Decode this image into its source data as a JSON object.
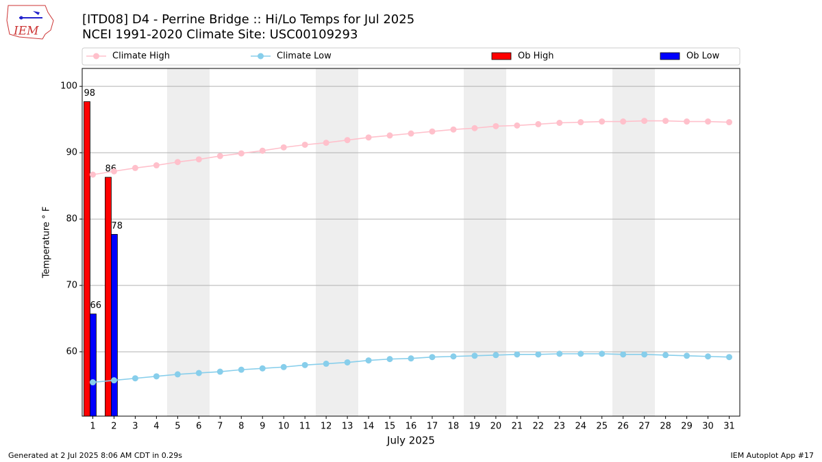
{
  "chart_data": {
    "type": "bar",
    "title": "[ITD08] D4 - Perrine Bridge  :: Hi/Lo Temps for Jul 2025",
    "subtitle": "NCEI 1991-2020 Climate Site: USC00109293",
    "x_label": "July 2025",
    "y_label": "Temperature ° F",
    "footer_left": "Generated at 2 Jul 2025 8:06 AM CDT in 0.29s",
    "footer_right": "IEM Autoplot App #17",
    "logo_text": "IEM",
    "categories": [
      "1",
      "2",
      "3",
      "4",
      "5",
      "6",
      "7",
      "8",
      "9",
      "10",
      "11",
      "12",
      "13",
      "14",
      "15",
      "16",
      "17",
      "18",
      "19",
      "20",
      "21",
      "22",
      "23",
      "24",
      "25",
      "26",
      "27",
      "28",
      "29",
      "30",
      "31"
    ],
    "ylim": [
      50.3,
      102.7
    ],
    "yticks": [
      60,
      70,
      80,
      90,
      100
    ],
    "grid": true,
    "legend": "top",
    "series": [
      {
        "name": "Climate High",
        "type": "line",
        "color": "#ffc0cb",
        "values": [
          86.7,
          87.2,
          87.7,
          88.1,
          88.6,
          89.0,
          89.5,
          89.9,
          90.3,
          90.8,
          91.2,
          91.5,
          91.9,
          92.3,
          92.6,
          92.9,
          93.2,
          93.5,
          93.7,
          94.0,
          94.1,
          94.3,
          94.5,
          94.6,
          94.7,
          94.7,
          94.8,
          94.8,
          94.7,
          94.7,
          94.6
        ]
      },
      {
        "name": "Climate Low",
        "type": "line",
        "color": "#87ceeb",
        "values": [
          55.4,
          55.7,
          56.0,
          56.3,
          56.6,
          56.8,
          57.0,
          57.3,
          57.5,
          57.7,
          58.0,
          58.2,
          58.4,
          58.7,
          58.9,
          59.0,
          59.2,
          59.3,
          59.4,
          59.5,
          59.6,
          59.6,
          59.7,
          59.7,
          59.7,
          59.6,
          59.6,
          59.5,
          59.4,
          59.3,
          59.2
        ]
      },
      {
        "name": "Ob High",
        "type": "bar",
        "color": "#ff0000",
        "values": [
          97.7,
          86.3,
          null,
          null,
          null,
          null,
          null,
          null,
          null,
          null,
          null,
          null,
          null,
          null,
          null,
          null,
          null,
          null,
          null,
          null,
          null,
          null,
          null,
          null,
          null,
          null,
          null,
          null,
          null,
          null,
          null
        ],
        "value_labels": [
          "98",
          "86",
          null,
          null,
          null,
          null,
          null,
          null,
          null,
          null,
          null,
          null,
          null,
          null,
          null,
          null,
          null,
          null,
          null,
          null,
          null,
          null,
          null,
          null,
          null,
          null,
          null,
          null,
          null,
          null,
          null
        ]
      },
      {
        "name": "Ob Low",
        "type": "bar",
        "color": "#0000ff",
        "values": [
          65.7,
          77.7,
          null,
          null,
          null,
          null,
          null,
          null,
          null,
          null,
          null,
          null,
          null,
          null,
          null,
          null,
          null,
          null,
          null,
          null,
          null,
          null,
          null,
          null,
          null,
          null,
          null,
          null,
          null,
          null,
          null
        ],
        "value_labels": [
          "66",
          "78",
          null,
          null,
          null,
          null,
          null,
          null,
          null,
          null,
          null,
          null,
          null,
          null,
          null,
          null,
          null,
          null,
          null,
          null,
          null,
          null,
          null,
          null,
          null,
          null,
          null,
          null,
          null,
          null,
          null
        ]
      }
    ]
  }
}
